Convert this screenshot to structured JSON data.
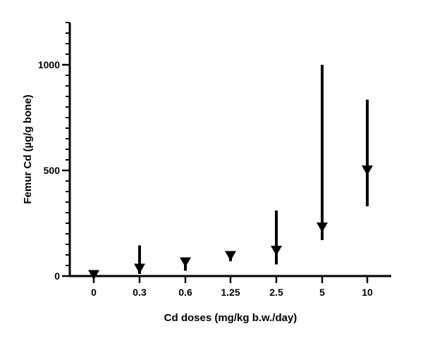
{
  "chart_data": {
    "type": "scatter",
    "xlabel": "Cd doses (mg/kg b.w./day)",
    "ylabel": "Femur Cd (µg/g bone)",
    "categories": [
      "0",
      "0.3",
      "0.6",
      "1.25",
      "2.5",
      "5",
      "10"
    ],
    "series": [
      {
        "marker": "inverted-triangle",
        "values": [
          5,
          35,
          65,
          95,
          120,
          230,
          500
        ],
        "error_low": [
          0,
          10,
          25,
          70,
          55,
          170,
          330
        ],
        "error_high": [
          10,
          145,
          80,
          105,
          310,
          1000,
          835
        ]
      }
    ],
    "ylim": [
      0,
      1200
    ],
    "yticks": [
      0,
      500,
      1000
    ],
    "y_minor_step": 50,
    "grid": false,
    "colors": {
      "marker": "#000000",
      "axis": "#000000"
    }
  }
}
